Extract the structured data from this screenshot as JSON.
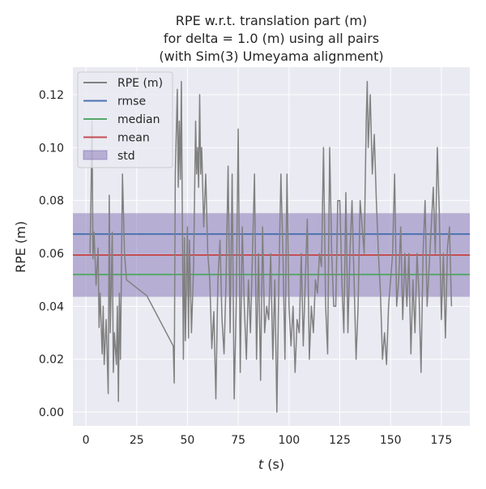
{
  "chart_data": {
    "type": "line",
    "title": [
      "RPE w.r.t. translation part (m)",
      "for delta = 1.0 (m) using all pairs",
      "(with Sim(3) Umeyama alignment)"
    ],
    "xlabel_italic": "t",
    "xlabel_unit": " (s)",
    "ylabel": "RPE (m)",
    "xlim": [
      -6.4,
      189
    ],
    "ylim": [
      -0.0052,
      0.1304
    ],
    "xticks": [
      0,
      25,
      50,
      75,
      100,
      125,
      150,
      175
    ],
    "xtick_labels": [
      "0",
      "25",
      "50",
      "75",
      "100",
      "125",
      "150",
      "175"
    ],
    "yticks": [
      0.0,
      0.02,
      0.04,
      0.06,
      0.08,
      0.1,
      0.12
    ],
    "ytick_labels": [
      "0.00",
      "0.02",
      "0.04",
      "0.06",
      "0.08",
      "0.10",
      "0.12"
    ],
    "grid": true,
    "legend_position": "top-left",
    "legend": [
      "RPE (m)",
      "rmse",
      "median",
      "mean",
      "std"
    ],
    "stats": {
      "rmse": 0.0673,
      "median": 0.052,
      "mean": 0.0594,
      "std": 0.0158
    },
    "colors": {
      "rpe": "#808080",
      "rmse": "#4c72b0",
      "median": "#55a868",
      "mean": "#c44e52",
      "std": "#8172b3",
      "background": "#eaeaf2"
    },
    "series": [
      {
        "name": "RPE (m)",
        "points": [
          [
            2,
            0.06
          ],
          [
            2.5,
            0.08
          ],
          [
            3,
            0.11
          ],
          [
            3.5,
            0.058
          ],
          [
            4,
            0.068
          ],
          [
            5,
            0.048
          ],
          [
            6,
            0.062
          ],
          [
            6.5,
            0.032
          ],
          [
            7,
            0.045
          ],
          [
            8,
            0.022
          ],
          [
            8.5,
            0.04
          ],
          [
            9,
            0.018
          ],
          [
            10,
            0.035
          ],
          [
            10.5,
            0.02
          ],
          [
            11,
            0.007
          ],
          [
            11.5,
            0.082
          ],
          [
            12,
            0.03
          ],
          [
            13,
            0.068
          ],
          [
            13.5,
            0.015
          ],
          [
            14,
            0.03
          ],
          [
            15,
            0.018
          ],
          [
            15.5,
            0.04
          ],
          [
            16,
            0.004
          ],
          [
            16.5,
            0.045
          ],
          [
            17,
            0.02
          ],
          [
            18,
            0.09
          ],
          [
            19,
            0.06
          ],
          [
            20,
            0.05
          ],
          [
            30,
            0.044
          ],
          [
            43,
            0.025
          ],
          [
            43.5,
            0.011
          ],
          [
            44,
            0.09
          ],
          [
            45,
            0.122
          ],
          [
            45.5,
            0.085
          ],
          [
            46,
            0.11
          ],
          [
            46.5,
            0.088
          ],
          [
            47,
            0.125
          ],
          [
            48,
            0.02
          ],
          [
            48.5,
            0.066
          ],
          [
            49,
            0.027
          ],
          [
            50,
            0.07
          ],
          [
            50.5,
            0.028
          ],
          [
            51,
            0.065
          ],
          [
            52,
            0.03
          ],
          [
            53,
            0.055
          ],
          [
            54,
            0.11
          ],
          [
            54.5,
            0.09
          ],
          [
            55,
            0.1
          ],
          [
            55.5,
            0.085
          ],
          [
            56,
            0.12
          ],
          [
            56.5,
            0.09
          ],
          [
            57,
            0.1
          ],
          [
            58,
            0.07
          ],
          [
            59,
            0.09
          ],
          [
            60,
            0.06
          ],
          [
            61,
            0.05
          ],
          [
            62,
            0.024
          ],
          [
            63,
            0.038
          ],
          [
            64,
            0.005
          ],
          [
            65,
            0.05
          ],
          [
            66,
            0.065
          ],
          [
            67,
            0.035
          ],
          [
            68,
            0.022
          ],
          [
            69,
            0.05
          ],
          [
            70,
            0.093
          ],
          [
            71,
            0.03
          ],
          [
            72,
            0.09
          ],
          [
            73,
            0.005
          ],
          [
            74,
            0.04
          ],
          [
            75,
            0.107
          ],
          [
            76,
            0.015
          ],
          [
            77,
            0.07
          ],
          [
            78,
            0.04
          ],
          [
            79,
            0.02
          ],
          [
            80,
            0.05
          ],
          [
            81,
            0.03
          ],
          [
            82,
            0.06
          ],
          [
            83,
            0.09
          ],
          [
            84,
            0.02
          ],
          [
            85,
            0.06
          ],
          [
            86,
            0.012
          ],
          [
            87,
            0.07
          ],
          [
            88,
            0.03
          ],
          [
            89,
            0.04
          ],
          [
            90,
            0.035
          ],
          [
            91,
            0.06
          ],
          [
            92,
            0.02
          ],
          [
            93,
            0.05
          ],
          [
            94,
            0.0
          ],
          [
            95,
            0.05
          ],
          [
            96,
            0.09
          ],
          [
            97,
            0.06
          ],
          [
            98,
            0.02
          ],
          [
            99,
            0.09
          ],
          [
            100,
            0.04
          ],
          [
            101,
            0.025
          ],
          [
            102,
            0.04
          ],
          [
            103,
            0.015
          ],
          [
            104,
            0.035
          ],
          [
            105,
            0.03
          ],
          [
            106,
            0.06
          ],
          [
            107,
            0.025
          ],
          [
            108,
            0.05
          ],
          [
            109,
            0.073
          ],
          [
            110,
            0.02
          ],
          [
            111,
            0.04
          ],
          [
            112,
            0.03
          ],
          [
            113,
            0.05
          ],
          [
            114,
            0.045
          ],
          [
            115,
            0.06
          ],
          [
            116,
            0.055
          ],
          [
            117,
            0.1
          ],
          [
            118,
            0.04
          ],
          [
            119,
            0.022
          ],
          [
            120,
            0.1
          ],
          [
            121,
            0.06
          ],
          [
            122,
            0.04
          ],
          [
            123,
            0.04
          ],
          [
            124,
            0.08
          ],
          [
            125,
            0.08
          ],
          [
            126,
            0.05
          ],
          [
            127,
            0.03
          ],
          [
            128,
            0.083
          ],
          [
            129,
            0.03
          ],
          [
            130,
            0.06
          ],
          [
            131,
            0.08
          ],
          [
            132,
            0.05
          ],
          [
            133,
            0.02
          ],
          [
            134,
            0.04
          ],
          [
            135,
            0.08
          ],
          [
            136,
            0.07
          ],
          [
            137,
            0.06
          ],
          [
            138,
            0.11
          ],
          [
            138.5,
            0.125
          ],
          [
            139,
            0.1
          ],
          [
            140,
            0.12
          ],
          [
            141,
            0.09
          ],
          [
            142,
            0.105
          ],
          [
            143,
            0.08
          ],
          [
            144,
            0.06
          ],
          [
            145,
            0.045
          ],
          [
            146,
            0.02
          ],
          [
            147,
            0.03
          ],
          [
            148,
            0.018
          ],
          [
            149,
            0.04
          ],
          [
            150,
            0.05
          ],
          [
            151,
            0.06
          ],
          [
            152,
            0.09
          ],
          [
            153,
            0.04
          ],
          [
            154,
            0.05
          ],
          [
            155,
            0.07
          ],
          [
            156,
            0.035
          ],
          [
            157,
            0.06
          ],
          [
            158,
            0.04
          ],
          [
            159,
            0.06
          ],
          [
            160,
            0.022
          ],
          [
            161,
            0.05
          ],
          [
            162,
            0.03
          ],
          [
            163,
            0.06
          ],
          [
            164,
            0.045
          ],
          [
            165,
            0.015
          ],
          [
            166,
            0.06
          ],
          [
            167,
            0.08
          ],
          [
            168,
            0.04
          ],
          [
            169,
            0.055
          ],
          [
            170,
            0.07
          ],
          [
            171,
            0.085
          ],
          [
            172,
            0.06
          ],
          [
            173,
            0.1
          ],
          [
            174,
            0.075
          ],
          [
            175,
            0.035
          ],
          [
            176,
            0.06
          ],
          [
            177,
            0.028
          ],
          [
            178,
            0.062
          ],
          [
            179,
            0.07
          ],
          [
            180,
            0.04
          ]
        ]
      }
    ]
  }
}
